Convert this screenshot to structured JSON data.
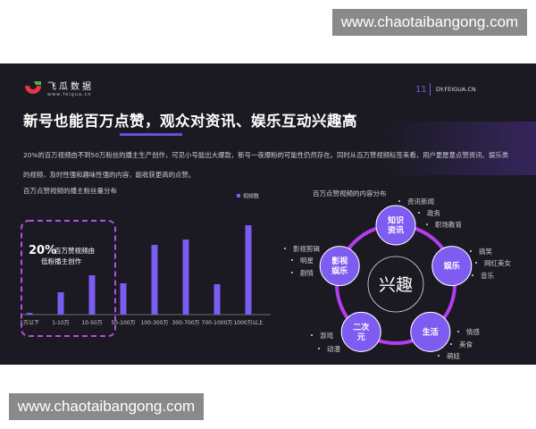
{
  "watermark": "www.chaotaibangong.com",
  "header": {
    "brand": "飞瓜数据",
    "brand_url": "www.feigua.cn",
    "page_number": "11",
    "site": "DY.FEIGUA.CN"
  },
  "title": "新号也能百万点赞，观众对资讯、娱乐互动兴趣高",
  "description": "20%的百万视频由不到50万粉丝的播主生产创作，可见小号能出大爆款，新号一夜爆粉的可能性仍然存在。同时从百万赞视频标签来看，用户更愿意点赞资讯、娱乐类的视频，及时性强和趣味性强的内容，能收获更高的点赞。",
  "colors": {
    "accent": "#7b5cf0",
    "ring": "#b43cf0",
    "node": "#7e5cf2",
    "panel": "#1b1a22"
  },
  "chart_data": {
    "type": "bar",
    "title": "百万点赞视频的播主粉丝量分布",
    "legend": "top-right",
    "series": [
      {
        "name": "视频数",
        "values": [
          2,
          25,
          44,
          35,
          78,
          84,
          34,
          100
        ]
      }
    ],
    "categories": [
      "1万以下",
      "1-10万",
      "10-50万",
      "50-100万",
      "100-300万",
      "300-700万",
      "700-1000万",
      "1000万以上"
    ],
    "annotation": {
      "big": "20%",
      "line1": "百万赞视频由",
      "line2": "低粉播主创作"
    }
  },
  "diagram": {
    "title": "百万点赞视频的内容分布",
    "center": "兴趣",
    "nodes": [
      {
        "label": [
          "知识",
          "资讯"
        ],
        "items": [
          "资讯新闻",
          "政务",
          "职场教育"
        ]
      },
      {
        "label": [
          "娱乐"
        ],
        "items": [
          "搞笑",
          "网红美女",
          "音乐"
        ]
      },
      {
        "label": [
          "生活"
        ],
        "items": [
          "情感",
          "美食",
          "萌娃"
        ]
      },
      {
        "label": [
          "二次",
          "元"
        ],
        "items": [
          "游戏",
          "动漫"
        ]
      },
      {
        "label": [
          "影视",
          "娱乐"
        ],
        "items": [
          "影视剪辑",
          "明星",
          "剧情"
        ]
      }
    ]
  }
}
